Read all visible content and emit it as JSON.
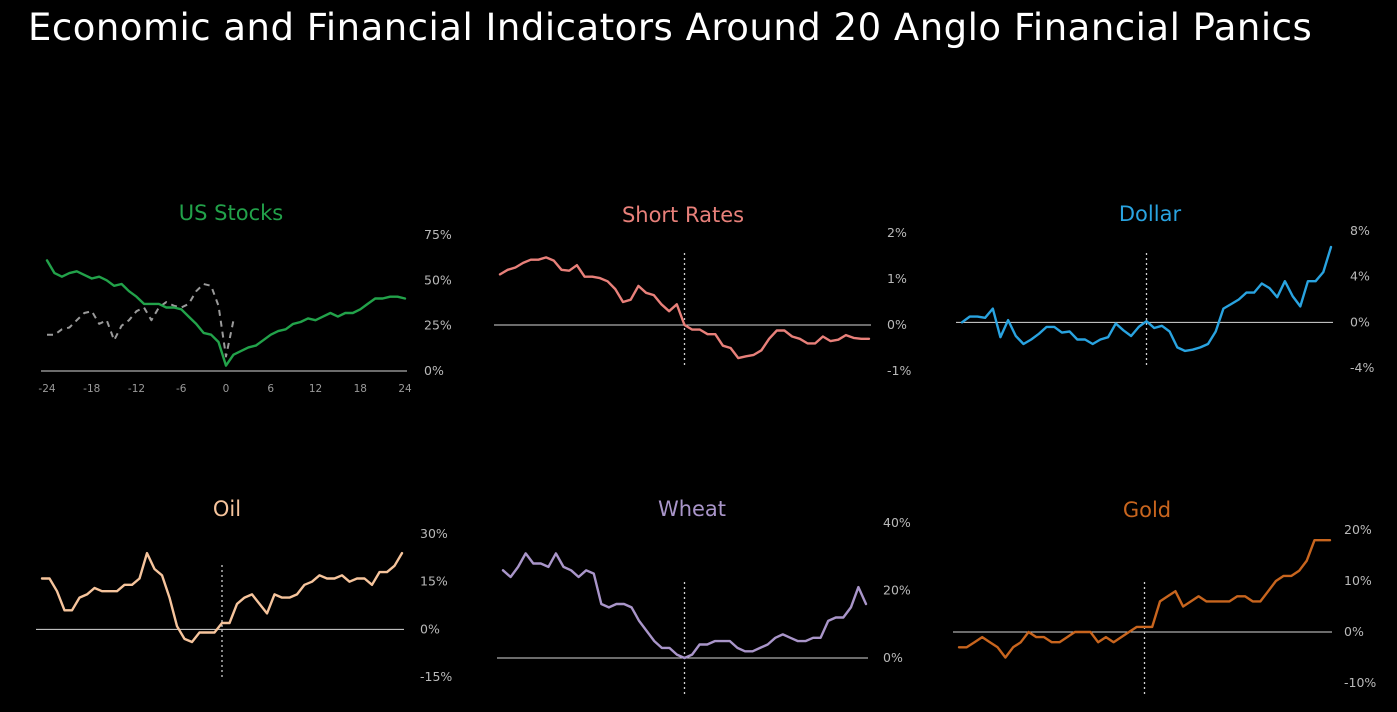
{
  "title": "Economic and Financial Indicators Around 20 Anglo Financial Panics",
  "chart_data": [
    {
      "name": "us-stocks",
      "type": "line",
      "title": "US Stocks",
      "color": "#22a24a",
      "x": [
        -24,
        -23,
        -22,
        -21,
        -20,
        -19,
        -18,
        -17,
        -16,
        -15,
        -14,
        -13,
        -12,
        -11,
        -10,
        -9,
        -8,
        -7,
        -6,
        -5,
        -4,
        -3,
        -2,
        -1,
        0,
        1,
        2,
        3,
        4,
        5,
        6,
        7,
        8,
        9,
        10,
        11,
        12,
        13,
        14,
        15,
        16,
        17,
        18,
        19,
        20,
        21,
        22,
        23,
        24
      ],
      "values": [
        61,
        54,
        52,
        54,
        55,
        53,
        51,
        52,
        50,
        47,
        48,
        44,
        41,
        37,
        37,
        37,
        35,
        35,
        34,
        30,
        26,
        21,
        20,
        16,
        3,
        9,
        11,
        13,
        14,
        17,
        20,
        22,
        23,
        26,
        27,
        29,
        28,
        30,
        32,
        30,
        32,
        32,
        34,
        37,
        40,
        40,
        41,
        41,
        40
      ],
      "series": [
        {
          "style": "dashed",
          "color": "#9a9a9a",
          "x": [
            -24,
            -23,
            -22,
            -21,
            -20,
            -19,
            -18,
            -17,
            -16,
            -15,
            -14,
            -13,
            -12,
            -11,
            -10,
            -9,
            -8,
            -7,
            -6,
            -5,
            -4,
            -3,
            -2,
            -1,
            0,
            1
          ],
          "values": [
            20,
            20,
            23,
            24,
            28,
            32,
            33,
            26,
            28,
            17,
            25,
            28,
            33,
            35,
            28,
            35,
            38,
            36,
            35,
            37,
            44,
            48,
            47,
            36,
            8,
            28
          ]
        }
      ],
      "y_ticks": [
        "0%",
        "25%",
        "50%",
        "75%"
      ],
      "x_ticks": [
        "-24",
        "-18",
        "-12",
        "-6",
        "0",
        "6",
        "12",
        "18",
        "24"
      ],
      "ylim": [
        0,
        75
      ]
    },
    {
      "name": "short-rates",
      "type": "line",
      "title": "Short Rates",
      "color": "#e8807a",
      "x": [
        -24,
        -23,
        -22,
        -21,
        -20,
        -19,
        -18,
        -17,
        -16,
        -15,
        -14,
        -13,
        -12,
        -11,
        -10,
        -9,
        -8,
        -7,
        -6,
        -5,
        -4,
        -3,
        -2,
        -1,
        0,
        1,
        2,
        3,
        4,
        5,
        6,
        7,
        8,
        9,
        10,
        11,
        12,
        13,
        14,
        15,
        16,
        17,
        18,
        19,
        20,
        21,
        22,
        23,
        24
      ],
      "values": [
        1.1,
        1.2,
        1.25,
        1.35,
        1.42,
        1.42,
        1.47,
        1.4,
        1.2,
        1.18,
        1.3,
        1.05,
        1.05,
        1.02,
        0.95,
        0.78,
        0.5,
        0.55,
        0.85,
        0.7,
        0.65,
        0.45,
        0.3,
        0.45,
        0.0,
        -0.1,
        -0.1,
        -0.2,
        -0.2,
        -0.45,
        -0.5,
        -0.72,
        -0.68,
        -0.65,
        -0.55,
        -0.3,
        -0.12,
        -0.12,
        -0.25,
        -0.3,
        -0.4,
        -0.4,
        -0.25,
        -0.35,
        -0.32,
        -0.22,
        -0.28,
        -0.3,
        -0.3
      ],
      "y_ticks": [
        "-1%",
        "0%",
        "1%",
        "2%"
      ],
      "ylim": [
        -1,
        2
      ]
    },
    {
      "name": "dollar",
      "type": "line",
      "title": "Dollar",
      "color": "#29a3e0",
      "x": [
        -24,
        -23,
        -22,
        -21,
        -20,
        -19,
        -18,
        -17,
        -16,
        -15,
        -14,
        -13,
        -12,
        -11,
        -10,
        -9,
        -8,
        -7,
        -6,
        -5,
        -4,
        -3,
        -2,
        -1,
        0,
        1,
        2,
        3,
        4,
        5,
        6,
        7,
        8,
        9,
        10,
        11,
        12,
        13,
        14,
        15,
        16,
        17,
        18,
        19,
        20,
        21,
        22,
        23,
        24
      ],
      "values": [
        0,
        0.5,
        0.5,
        0.4,
        1.2,
        -1.3,
        0.2,
        -1.2,
        -1.9,
        -1.5,
        -1.0,
        -0.4,
        -0.4,
        -0.9,
        -0.8,
        -1.5,
        -1.5,
        -1.9,
        -1.5,
        -1.3,
        -0.1,
        -0.7,
        -1.2,
        -0.4,
        0.1,
        -0.5,
        -0.3,
        -0.8,
        -2.2,
        -2.5,
        -2.4,
        -2.2,
        -1.9,
        -0.8,
        1.2,
        1.6,
        2.0,
        2.6,
        2.6,
        3.4,
        3.0,
        2.2,
        3.6,
        2.3,
        1.4,
        3.6,
        3.6,
        4.4,
        6.6
      ],
      "y_ticks": [
        "-4%",
        "0%",
        "4%",
        "8%"
      ],
      "ylim": [
        -4,
        8
      ]
    },
    {
      "name": "oil",
      "type": "line",
      "title": "Oil",
      "color": "#f6c49c",
      "x": [
        -24,
        -23,
        -22,
        -21,
        -20,
        -19,
        -18,
        -17,
        -16,
        -15,
        -14,
        -13,
        -12,
        -11,
        -10,
        -9,
        -8,
        -7,
        -6,
        -5,
        -4,
        -3,
        -2,
        -1,
        0,
        1,
        2,
        3,
        4,
        5,
        6,
        7,
        8,
        9,
        10,
        11,
        12,
        13,
        14,
        15,
        16,
        17,
        18,
        19,
        20,
        21,
        22,
        23,
        24
      ],
      "values": [
        16,
        16,
        12,
        6,
        6,
        10,
        11,
        13,
        12,
        12,
        12,
        14,
        14,
        16,
        24,
        19,
        17,
        10,
        1,
        -3,
        -4,
        -1,
        -1,
        -1,
        2,
        2,
        8,
        10,
        11,
        8,
        5,
        11,
        10,
        10,
        11,
        14,
        15,
        17,
        16,
        16,
        17,
        15,
        16,
        16,
        14,
        18,
        18,
        20,
        24
      ],
      "y_ticks": [
        "-15%",
        "0%",
        "15%",
        "30%"
      ],
      "ylim": [
        -15,
        30
      ]
    },
    {
      "name": "wheat",
      "type": "line",
      "title": "Wheat",
      "color": "#a995c9",
      "x": [
        -24,
        -23,
        -22,
        -21,
        -20,
        -19,
        -18,
        -17,
        -16,
        -15,
        -14,
        -13,
        -12,
        -11,
        -10,
        -9,
        -8,
        -7,
        -6,
        -5,
        -4,
        -3,
        -2,
        -1,
        0,
        1,
        2,
        3,
        4,
        5,
        6,
        7,
        8,
        9,
        10,
        11,
        12,
        13,
        14,
        15,
        16,
        17,
        18,
        19,
        20,
        21,
        22,
        23,
        24
      ],
      "values": [
        26,
        24,
        27,
        31,
        28,
        28,
        27,
        31,
        27,
        26,
        24,
        26,
        25,
        16,
        15,
        16,
        16,
        15,
        11,
        8,
        5,
        3,
        3,
        1,
        0,
        1,
        4,
        4,
        5,
        5,
        5,
        3,
        2,
        2,
        3,
        4,
        6,
        7,
        6,
        5,
        5,
        6,
        6,
        11,
        12,
        12,
        15,
        21,
        16
      ],
      "y_ticks": [
        "0%",
        "20%",
        "40%"
      ],
      "ylim": [
        0,
        40
      ]
    },
    {
      "name": "gold",
      "type": "line",
      "title": "Gold",
      "color": "#c8651e",
      "x": [
        -24,
        -23,
        -22,
        -21,
        -20,
        -19,
        -18,
        -17,
        -16,
        -15,
        -14,
        -13,
        -12,
        -11,
        -10,
        -9,
        -8,
        -7,
        -6,
        -5,
        -4,
        -3,
        -2,
        -1,
        0,
        1,
        2,
        3,
        4,
        5,
        6,
        7,
        8,
        9,
        10,
        11,
        12,
        13,
        14,
        15,
        16,
        17,
        18,
        19,
        20,
        21,
        22,
        23,
        24
      ],
      "values": [
        -3,
        -3,
        -2,
        -1,
        -2,
        -3,
        -5,
        -3,
        -2,
        0,
        -1,
        -1,
        -2,
        -2,
        -1,
        0,
        0,
        0,
        -2,
        -1,
        -2,
        -1,
        0,
        1,
        1,
        1,
        6,
        7,
        8,
        5,
        6,
        7,
        6,
        6,
        6,
        6,
        7,
        7,
        6,
        6,
        8,
        10,
        11,
        11,
        12,
        14,
        18,
        18,
        18
      ],
      "y_ticks": [
        "-10%",
        "0%",
        "10%",
        "20%"
      ],
      "ylim": [
        -10,
        20
      ]
    }
  ]
}
